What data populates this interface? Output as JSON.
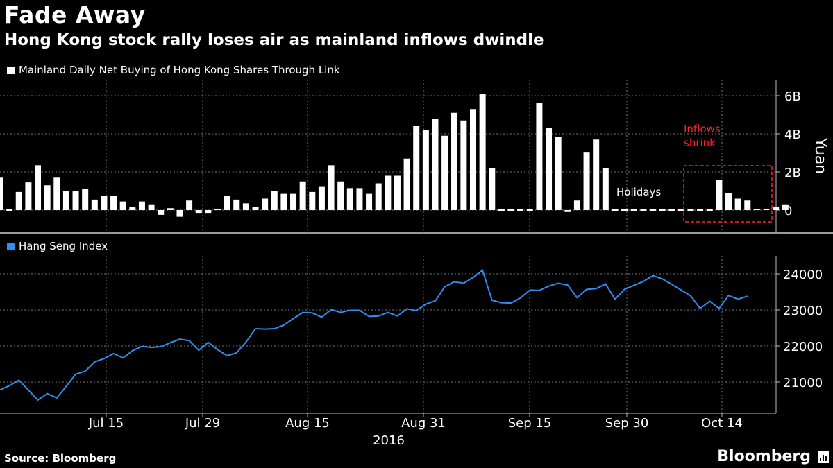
{
  "header": {
    "title": "Fade Away",
    "subtitle": "Hong Kong stock rally loses air as mainland inflows dwindle"
  },
  "footer": {
    "source": "Source: Bloomberg",
    "brand": "Bloomberg"
  },
  "colors": {
    "bars": "#ffffff",
    "line": "#2f8ff0",
    "annotation": "#ff2020",
    "background": "#000000",
    "grid": "#777777"
  },
  "chart_data": [
    {
      "type": "bar",
      "legend": "Mainland Daily Net Buying of Hong Kong Shares Through Link",
      "ylabel": "Yuan",
      "ylim": [
        -1.0,
        6.5
      ],
      "yticks": [
        0,
        2,
        4,
        6
      ],
      "ytick_labels": [
        "0",
        "2B",
        "4B",
        "6B"
      ],
      "y_unit": "billion yuan",
      "values": [
        1.7,
        0.0,
        0.95,
        1.45,
        2.35,
        1.3,
        1.7,
        1.0,
        1.0,
        1.1,
        0.55,
        0.75,
        0.75,
        0.45,
        0.15,
        0.45,
        0.3,
        -0.25,
        0.1,
        -0.35,
        0.5,
        -0.15,
        -0.15,
        0.05,
        0.75,
        0.55,
        0.35,
        0.15,
        0.6,
        1.0,
        0.85,
        0.85,
        1.5,
        0.95,
        1.25,
        2.35,
        1.5,
        1.15,
        1.15,
        0.85,
        1.4,
        1.8,
        1.8,
        2.7,
        4.4,
        4.2,
        4.8,
        3.9,
        5.1,
        4.7,
        5.3,
        6.1,
        2.2,
        0.0,
        0.0,
        0.0,
        0.0,
        5.6,
        4.3,
        3.85,
        -0.1,
        0.5,
        3.05,
        3.7,
        2.2,
        0.0,
        0.0,
        0.0,
        0.0,
        0.0,
        0.0,
        0.0,
        0.0,
        0.0,
        0.0,
        0.0,
        1.6,
        0.9,
        0.6,
        0.5,
        0.05,
        0.05,
        0.15,
        0.3
      ],
      "annotations": [
        {
          "text": "Holidays"
        },
        {
          "text": "Inflows\nshrink",
          "lines": [
            "Inflows",
            "shrink"
          ]
        }
      ]
    },
    {
      "type": "line",
      "legend": "Hang Seng Index",
      "ylim": [
        20000,
        24500
      ],
      "yticks": [
        21000,
        22000,
        23000,
        24000
      ],
      "ytick_labels": [
        "21000",
        "22000",
        "23000",
        "24000"
      ],
      "values": [
        20780,
        20900,
        21050,
        20780,
        20500,
        20680,
        20560,
        20880,
        21220,
        21300,
        21560,
        21650,
        21790,
        21670,
        21870,
        21990,
        21960,
        21980,
        22090,
        22190,
        22150,
        21880,
        22100,
        21900,
        21730,
        21810,
        22110,
        22480,
        22470,
        22480,
        22580,
        22760,
        22930,
        22920,
        22800,
        23010,
        22930,
        22990,
        22990,
        22820,
        22830,
        22930,
        22830,
        23030,
        22980,
        23160,
        23250,
        23640,
        23780,
        23740,
        23900,
        24100,
        23270,
        23200,
        23190,
        23330,
        23550,
        23540,
        23660,
        23740,
        23690,
        23340,
        23570,
        23590,
        23720,
        23300,
        23570,
        23680,
        23790,
        23950,
        23860,
        23710,
        23550,
        23390,
        23040,
        23240,
        23040,
        23400,
        23300,
        23380
      ]
    }
  ],
  "x_axis": {
    "tick_labels": [
      "Jul 15",
      "Jul 29",
      "Aug 15",
      "Aug 31",
      "Sep 15",
      "Sep 30",
      "Oct 14"
    ],
    "year_label": "2016"
  }
}
